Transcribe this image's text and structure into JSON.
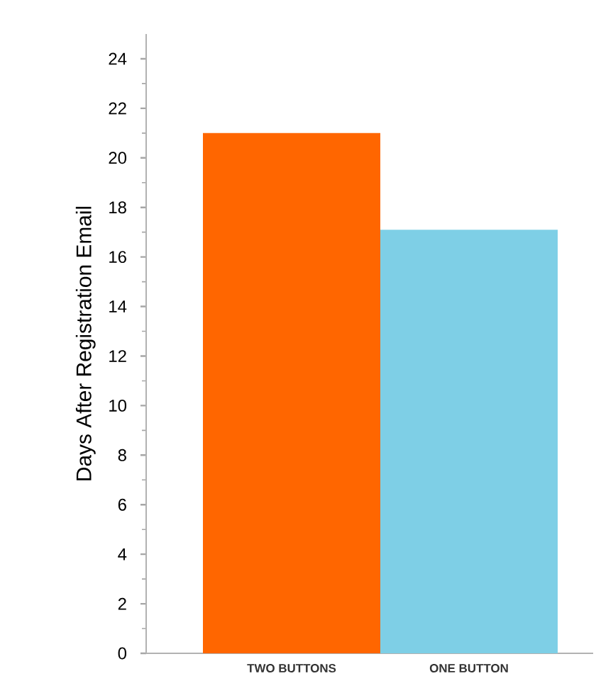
{
  "chart_data": {
    "type": "bar",
    "ylabel": "Days After Registration Email",
    "categories": [
      "TWO BUTTONS",
      "ONE BUTTON"
    ],
    "values": [
      21,
      17.1
    ],
    "colors": [
      "#ff6600",
      "#7ecfe6"
    ],
    "ylim": [
      0,
      25
    ],
    "yticks": [
      0,
      2,
      4,
      6,
      8,
      10,
      12,
      14,
      16,
      18,
      20,
      22,
      24
    ],
    "grid": false
  }
}
